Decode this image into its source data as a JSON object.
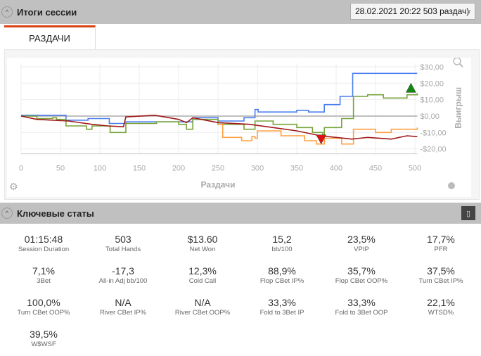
{
  "session": {
    "title": "Итоги сессии",
    "session_select": "28.02.2021 20:22 503 раздач)"
  },
  "tabs": [
    {
      "label": "РАЗДАЧИ",
      "active": true
    }
  ],
  "chart_data": {
    "type": "line",
    "xlabel": "Раздачи",
    "ylabel": "Выигрыш",
    "xlim": [
      0,
      503
    ],
    "ylim": [
      -23,
      32
    ],
    "xticks": [
      0,
      50,
      100,
      150,
      200,
      250,
      300,
      350,
      400,
      450,
      500
    ],
    "yticks": [
      {
        "v": 30,
        "label": "$30,00"
      },
      {
        "v": 20,
        "label": "$20,00"
      },
      {
        "v": 10,
        "label": "$10,00"
      },
      {
        "v": 0,
        "label": "$0,00"
      },
      {
        "v": -10,
        "label": "-$10,00"
      },
      {
        "v": -20,
        "label": "-$20,00"
      }
    ],
    "series": [
      {
        "name": "blue",
        "color": "#4a7df0",
        "step": true,
        "points": [
          [
            0,
            0.5
          ],
          [
            57,
            -2.5
          ],
          [
            85,
            -1.5
          ],
          [
            112,
            -4.5
          ],
          [
            133,
            -3.5
          ],
          [
            218,
            -1
          ],
          [
            250,
            -3
          ],
          [
            283,
            -1
          ],
          [
            297,
            4
          ],
          [
            301,
            2.5
          ],
          [
            350,
            3.5
          ],
          [
            365,
            2.5
          ],
          [
            385,
            7
          ],
          [
            405,
            12
          ],
          [
            421,
            26
          ],
          [
            503,
            26
          ]
        ]
      },
      {
        "name": "green",
        "color": "#77a33a",
        "step": true,
        "points": [
          [
            0,
            0
          ],
          [
            20,
            -1.5
          ],
          [
            40,
            -1
          ],
          [
            45,
            -2
          ],
          [
            57,
            -6
          ],
          [
            83,
            -8
          ],
          [
            90,
            -6
          ],
          [
            113,
            -10
          ],
          [
            133,
            -4.5
          ],
          [
            172,
            -3.5
          ],
          [
            200,
            -5
          ],
          [
            210,
            -8
          ],
          [
            218,
            -2
          ],
          [
            250,
            -5
          ],
          [
            283,
            -8
          ],
          [
            297,
            -3
          ],
          [
            320,
            -5
          ],
          [
            350,
            -7
          ],
          [
            370,
            -10
          ],
          [
            383,
            -12
          ],
          [
            385,
            -7
          ],
          [
            407,
            -1.5
          ],
          [
            422,
            12
          ],
          [
            440,
            13
          ],
          [
            460,
            11
          ],
          [
            490,
            13
          ],
          [
            503,
            14
          ]
        ]
      },
      {
        "name": "orange",
        "color": "#ffa040",
        "step": true,
        "points": [
          [
            250,
            -5
          ],
          [
            256,
            -13
          ],
          [
            280,
            -15
          ],
          [
            293,
            -12.5
          ],
          [
            297,
            -13.5
          ],
          [
            300,
            -9
          ],
          [
            330,
            -12
          ],
          [
            360,
            -15
          ],
          [
            375,
            -17
          ],
          [
            385,
            -13.5
          ],
          [
            407,
            -17
          ],
          [
            422,
            -8
          ],
          [
            450,
            -10
          ],
          [
            470,
            -8
          ],
          [
            503,
            -7
          ]
        ]
      },
      {
        "name": "darkred",
        "color": "#a01818",
        "step": false,
        "points": [
          [
            0,
            0
          ],
          [
            20,
            -2
          ],
          [
            60,
            -3
          ],
          [
            90,
            -5
          ],
          [
            110,
            -6
          ],
          [
            130,
            -6.5
          ],
          [
            133,
            -0.5
          ],
          [
            170,
            0.5
          ],
          [
            200,
            -2
          ],
          [
            210,
            -4
          ],
          [
            218,
            -1
          ],
          [
            250,
            -4
          ],
          [
            290,
            -5
          ],
          [
            320,
            -7
          ],
          [
            350,
            -9
          ],
          [
            380,
            -12
          ],
          [
            400,
            -13
          ],
          [
            420,
            -14
          ],
          [
            440,
            -13
          ],
          [
            470,
            -14
          ],
          [
            490,
            -12
          ],
          [
            503,
            -12.5
          ]
        ]
      }
    ],
    "markers": [
      {
        "type": "max",
        "x": 495,
        "y": 17,
        "color": "#118811"
      },
      {
        "type": "min",
        "x": 381,
        "y": -14,
        "color": "#e01010"
      }
    ]
  },
  "stats_section": {
    "title": "Ключевые статы"
  },
  "stats": [
    {
      "value": "01:15:48",
      "label": "Session Duration"
    },
    {
      "value": "503",
      "label": "Total Hands"
    },
    {
      "value": "$13.60",
      "label": "Net Won"
    },
    {
      "value": "15,2",
      "label": "bb/100"
    },
    {
      "value": "23,5%",
      "label": "VPIP"
    },
    {
      "value": "17,7%",
      "label": "PFR"
    },
    {
      "value": "7,1%",
      "label": "3Bet"
    },
    {
      "value": "-17,3",
      "label": "All-in Adj bb/100"
    },
    {
      "value": "12,3%",
      "label": "Cold Call"
    },
    {
      "value": "88,9%",
      "label": "Flop CBet IP%"
    },
    {
      "value": "35,7%",
      "label": "Flop CBet OOP%"
    },
    {
      "value": "37,5%",
      "label": "Turn CBet IP%"
    },
    {
      "value": "100,0%",
      "label": "Turn CBet OOP%"
    },
    {
      "value": "N/A",
      "label": "River CBet IP%"
    },
    {
      "value": "N/A",
      "label": "River CBet OOP%"
    },
    {
      "value": "33,3%",
      "label": "Fold to 3Bet IP"
    },
    {
      "value": "33,3%",
      "label": "Fold to 3Bet OOP"
    },
    {
      "value": "22,1%",
      "label": "WTSD%"
    },
    {
      "value": "39,5%",
      "label": "W$WSF"
    }
  ]
}
